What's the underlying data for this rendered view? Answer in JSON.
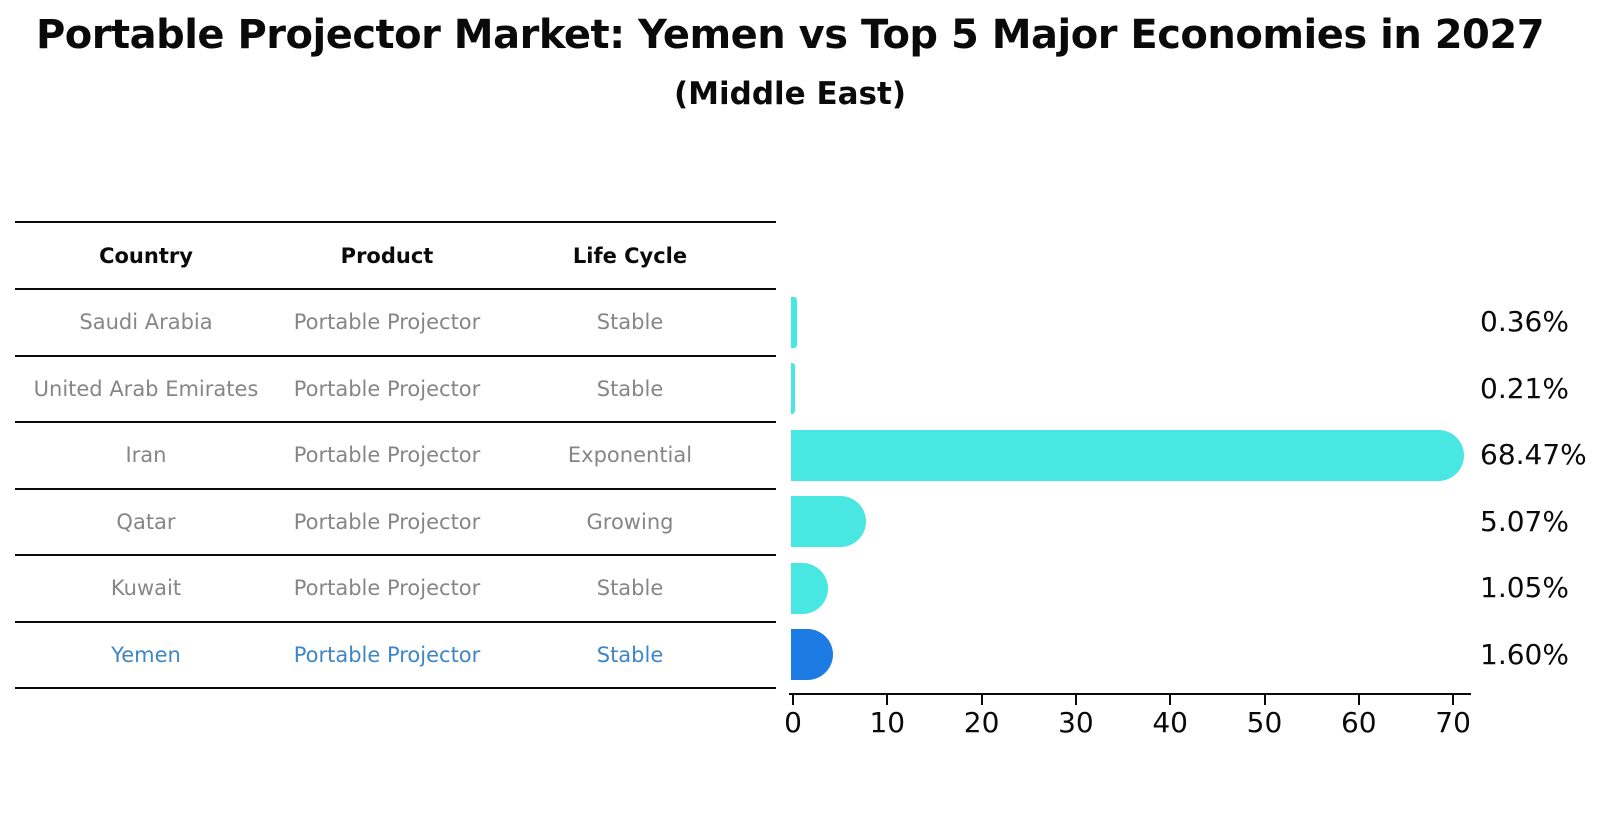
{
  "chart_data": {
    "type": "bar",
    "orientation": "horizontal",
    "title": "Portable Projector Market: Yemen vs Top 5 Major Economies in 2027",
    "subtitle": "(Middle East)",
    "categories": [
      "Saudi Arabia",
      "United Arab Emirates",
      "Iran",
      "Qatar",
      "Kuwait",
      "Yemen"
    ],
    "values": [
      0.36,
      0.21,
      68.47,
      5.07,
      1.05,
      1.6
    ],
    "value_labels": [
      "0.36%",
      "0.21%",
      "68.47%",
      "5.07%",
      "1.05%",
      "1.60%"
    ],
    "x_ticks": [
      0,
      10,
      20,
      30,
      40,
      50,
      60,
      70
    ],
    "xlim": [
      0,
      72
    ],
    "grid": "off",
    "legend": "none",
    "bar_color": "#48E7E1",
    "highlight_color": "#1C7CE4",
    "highlight_index": 5
  },
  "table": {
    "headers": [
      "Country",
      "Product",
      "Life Cycle"
    ],
    "rows": [
      {
        "country": "Saudi Arabia",
        "product": "Portable Projector",
        "life_cycle": "Stable",
        "highlighted": false
      },
      {
        "country": "United Arab Emirates",
        "product": "Portable Projector",
        "life_cycle": "Stable",
        "highlighted": false
      },
      {
        "country": "Iran",
        "product": "Portable Projector",
        "life_cycle": "Exponential",
        "highlighted": false
      },
      {
        "country": "Qatar",
        "product": "Portable Projector",
        "life_cycle": "Growing",
        "highlighted": false
      },
      {
        "country": "Kuwait",
        "product": "Portable Projector",
        "life_cycle": "Stable",
        "highlighted": false
      },
      {
        "country": "Yemen",
        "product": "Portable Projector",
        "life_cycle": "Stable",
        "highlighted": true
      }
    ]
  },
  "colors": {
    "row_text": "#868686",
    "highlight_text": "#3F86C6",
    "header_text": "#0a0a0a",
    "line": "#0a0a0a"
  }
}
